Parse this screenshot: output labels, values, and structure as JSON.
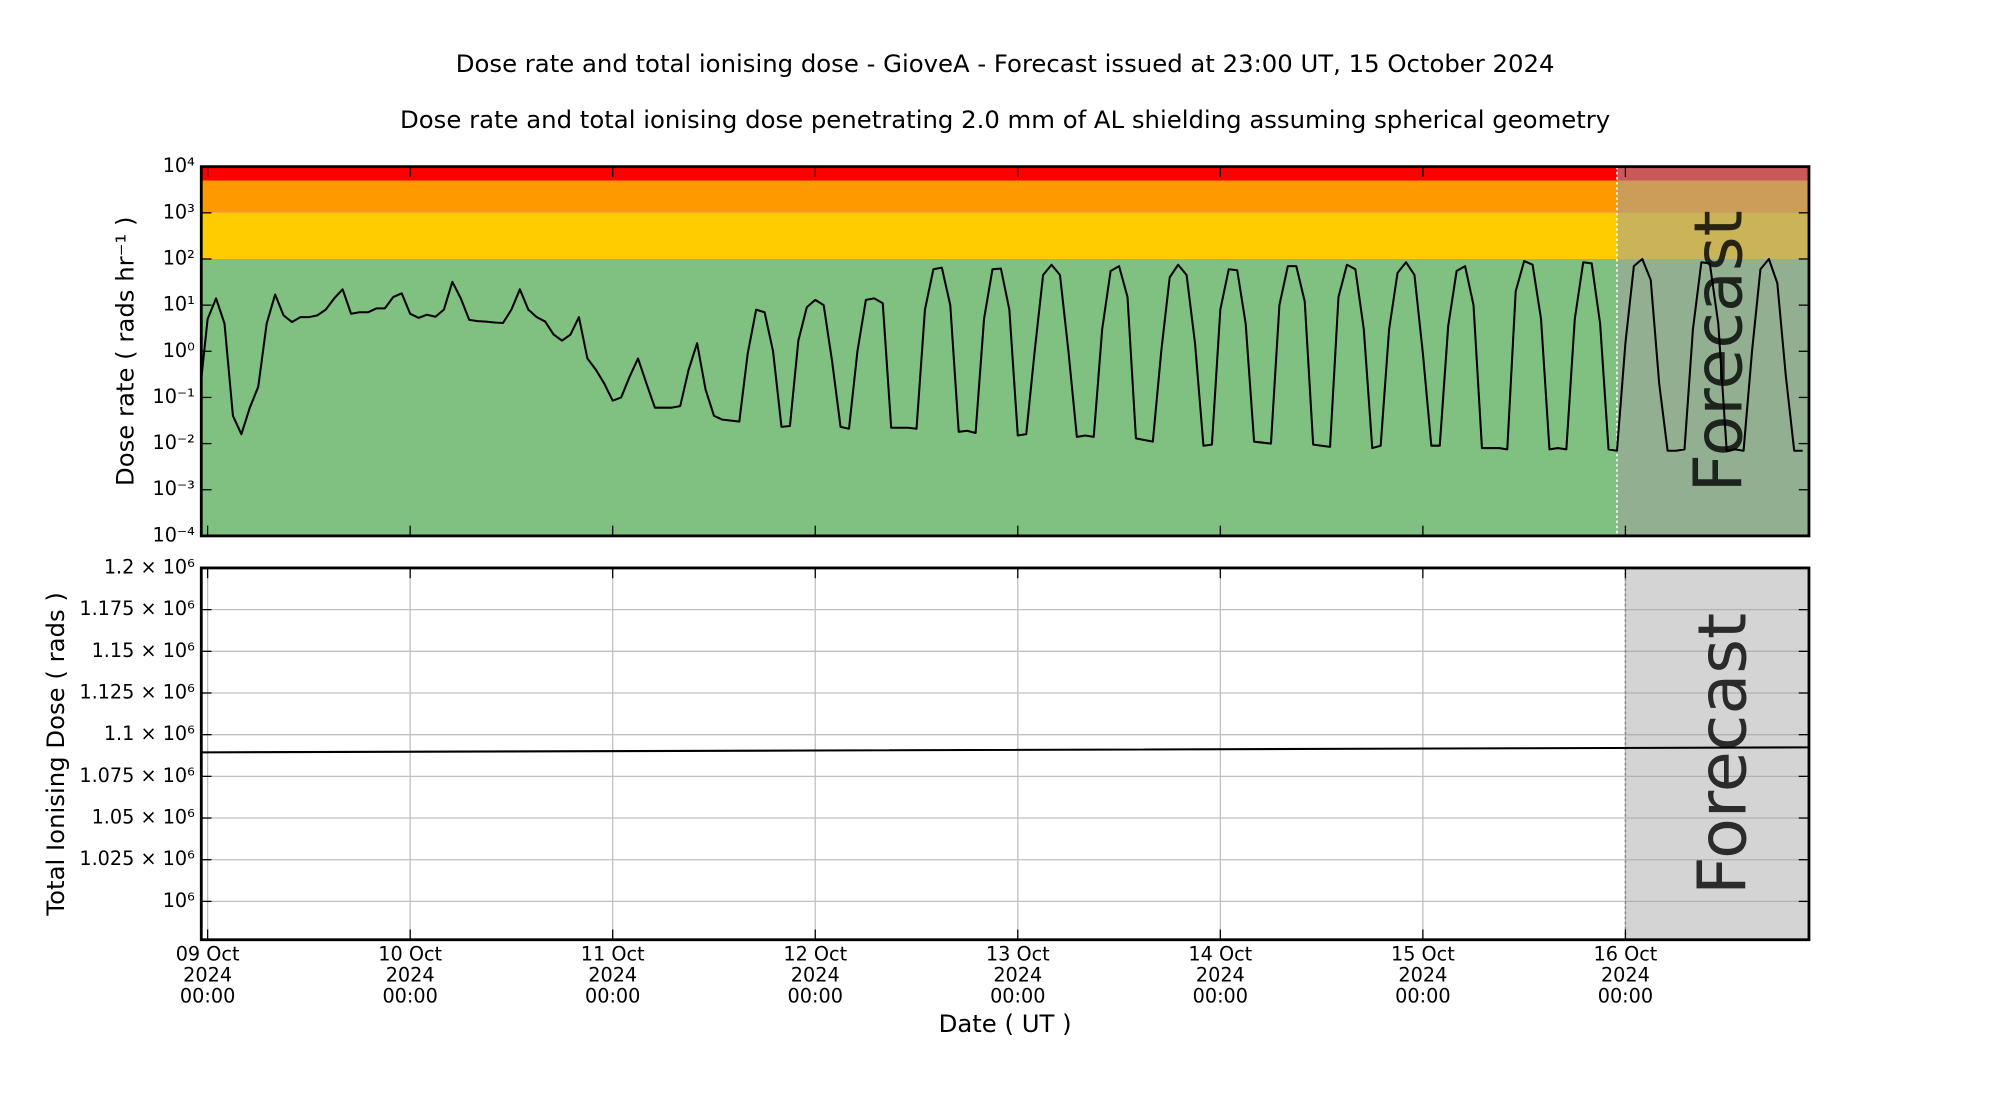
{
  "chart_data": [
    {
      "type": "line",
      "title": "Dose rate and total ionising dose - GioveA - Forecast issued at 23:00 UT, 15 October 2024",
      "subtitle": "Dose rate and total ionising dose penetrating 2.0 mm of AL shielding assuming spherical geometry",
      "ylabel": "Dose rate ( rads hr⁻¹ )",
      "yscale": "log",
      "color": "#000000",
      "xlim": [
        "2024-10-08T23:15",
        "2024-10-16T21:45"
      ],
      "ylim": [
        0.0001,
        10000
      ],
      "yticks": [
        {
          "value": 0.0001,
          "label": "10⁻⁴"
        },
        {
          "value": 0.001,
          "label": "10⁻³"
        },
        {
          "value": 0.01,
          "label": "10⁻²"
        },
        {
          "value": 0.1,
          "label": "10⁻¹"
        },
        {
          "value": 1,
          "label": "10⁰"
        },
        {
          "value": 10,
          "label": "10¹"
        },
        {
          "value": 100,
          "label": "10²"
        },
        {
          "value": 1000,
          "label": "10³"
        },
        {
          "value": 10000,
          "label": "10⁴"
        }
      ],
      "bands": [
        {
          "from": 0.0001,
          "to": 100,
          "color": "#80c080"
        },
        {
          "from": 100,
          "to": 1000,
          "color": "#ffcc00"
        },
        {
          "from": 1000,
          "to": 5000,
          "color": "#ff9900"
        },
        {
          "from": 5000,
          "to": 10000,
          "color": "#ff0000"
        }
      ],
      "forecast_start": "2024-10-15T23:00",
      "annotation": "Forecast",
      "x": [
        "2024-10-08T23:15",
        "2024-10-09T00:00",
        "2024-10-09T01:00",
        "2024-10-09T02:00",
        "2024-10-09T03:00",
        "2024-10-09T04:00",
        "2024-10-09T05:00",
        "2024-10-09T06:00",
        "2024-10-09T07:00",
        "2024-10-09T08:00",
        "2024-10-09T09:00",
        "2024-10-09T10:00",
        "2024-10-09T11:00",
        "2024-10-09T12:00",
        "2024-10-09T13:00",
        "2024-10-09T14:00",
        "2024-10-09T15:00",
        "2024-10-09T16:00",
        "2024-10-09T17:00",
        "2024-10-09T18:00",
        "2024-10-09T19:00",
        "2024-10-09T20:00",
        "2024-10-09T21:00",
        "2024-10-09T22:00",
        "2024-10-09T23:00",
        "2024-10-10T00:00",
        "2024-10-10T01:00",
        "2024-10-10T02:00",
        "2024-10-10T03:00",
        "2024-10-10T04:00",
        "2024-10-10T05:00",
        "2024-10-10T06:00",
        "2024-10-10T07:00",
        "2024-10-10T08:00",
        "2024-10-10T09:00",
        "2024-10-10T10:00",
        "2024-10-10T11:00",
        "2024-10-10T12:00",
        "2024-10-10T13:00",
        "2024-10-10T14:00",
        "2024-10-10T15:00",
        "2024-10-10T16:00",
        "2024-10-10T17:00",
        "2024-10-10T18:00",
        "2024-10-10T19:00",
        "2024-10-10T20:00",
        "2024-10-10T21:00",
        "2024-10-10T22:00",
        "2024-10-10T23:00",
        "2024-10-11T00:00",
        "2024-10-11T01:00",
        "2024-10-11T02:00",
        "2024-10-11T03:00",
        "2024-10-11T04:00",
        "2024-10-11T05:00",
        "2024-10-11T07:00",
        "2024-10-11T08:00",
        "2024-10-11T09:00",
        "2024-10-11T10:00",
        "2024-10-11T11:00",
        "2024-10-11T12:00",
        "2024-10-11T13:00",
        "2024-10-11T15:00",
        "2024-10-11T16:00",
        "2024-10-11T17:00",
        "2024-10-11T18:00",
        "2024-10-11T19:00",
        "2024-10-11T20:00",
        "2024-10-11T21:00",
        "2024-10-11T22:00",
        "2024-10-11T23:00",
        "2024-10-12T00:00",
        "2024-10-12T01:00",
        "2024-10-12T02:00",
        "2024-10-12T03:00",
        "2024-10-12T04:00",
        "2024-10-12T05:00",
        "2024-10-12T06:00",
        "2024-10-12T07:00",
        "2024-10-12T08:00",
        "2024-10-12T09:00",
        "2024-10-12T11:00",
        "2024-10-12T12:00",
        "2024-10-12T13:00",
        "2024-10-12T14:00",
        "2024-10-12T15:00",
        "2024-10-12T16:00",
        "2024-10-12T17:00",
        "2024-10-12T18:00",
        "2024-10-12T19:00",
        "2024-10-12T20:00",
        "2024-10-12T21:00",
        "2024-10-12T22:00",
        "2024-10-12T23:00",
        "2024-10-13T00:00",
        "2024-10-13T01:00",
        "2024-10-13T02:00",
        "2024-10-13T03:00",
        "2024-10-13T04:00",
        "2024-10-13T05:00",
        "2024-10-13T06:00",
        "2024-10-13T07:00",
        "2024-10-13T08:00",
        "2024-10-13T09:00",
        "2024-10-13T10:00",
        "2024-10-13T11:00",
        "2024-10-13T12:00",
        "2024-10-13T13:00",
        "2024-10-13T14:00",
        "2024-10-13T16:00",
        "2024-10-13T17:00",
        "2024-10-13T18:00",
        "2024-10-13T19:00",
        "2024-10-13T20:00",
        "2024-10-13T21:00",
        "2024-10-13T22:00",
        "2024-10-13T23:00",
        "2024-10-14T00:00",
        "2024-10-14T01:00",
        "2024-10-14T02:00",
        "2024-10-14T03:00",
        "2024-10-14T04:00",
        "2024-10-14T06:00",
        "2024-10-14T07:00",
        "2024-10-14T08:00",
        "2024-10-14T09:00",
        "2024-10-14T10:00",
        "2024-10-14T11:00",
        "2024-10-14T13:00",
        "2024-10-14T14:00",
        "2024-10-14T15:00",
        "2024-10-14T16:00",
        "2024-10-14T17:00",
        "2024-10-14T18:00",
        "2024-10-14T19:00",
        "2024-10-14T20:00",
        "2024-10-14T21:00",
        "2024-10-14T22:00",
        "2024-10-14T23:00",
        "2024-10-15T00:00",
        "2024-10-15T01:00",
        "2024-10-15T02:00",
        "2024-10-15T03:00",
        "2024-10-15T04:00",
        "2024-10-15T05:00",
        "2024-10-15T06:00",
        "2024-10-15T07:00",
        "2024-10-15T09:00",
        "2024-10-15T10:00",
        "2024-10-15T11:00",
        "2024-10-15T12:00",
        "2024-10-15T13:00",
        "2024-10-15T14:00",
        "2024-10-15T15:00",
        "2024-10-15T16:00",
        "2024-10-15T17:00",
        "2024-10-15T18:00",
        "2024-10-15T19:00",
        "2024-10-15T20:00",
        "2024-10-15T21:00",
        "2024-10-15T22:00",
        "2024-10-15T23:00",
        "2024-10-16T00:00",
        "2024-10-16T01:00",
        "2024-10-16T02:00",
        "2024-10-16T03:00",
        "2024-10-16T04:00",
        "2024-10-16T05:00",
        "2024-10-16T06:00",
        "2024-10-16T07:00",
        "2024-10-16T08:00",
        "2024-10-16T09:00",
        "2024-10-16T10:00",
        "2024-10-16T11:00",
        "2024-10-16T12:00",
        "2024-10-16T13:00",
        "2024-10-16T14:00",
        "2024-10-16T15:00",
        "2024-10-16T16:00",
        "2024-10-16T17:00",
        "2024-10-16T18:00",
        "2024-10-16T19:00",
        "2024-10-16T20:00",
        "2024-10-16T21:00"
      ],
      "values": [
        0.25,
        5,
        14,
        4,
        0.04,
        0.016,
        0.06,
        0.17,
        4,
        17,
        6,
        4.3,
        5.5,
        5.5,
        6,
        8,
        14,
        22,
        6.5,
        7,
        7,
        8.5,
        8.5,
        15,
        18,
        6.5,
        5.3,
        6.2,
        5.6,
        8,
        32,
        14,
        4.8,
        4.5,
        4.4,
        4.2,
        4.1,
        8,
        22,
        8,
        5.5,
        4.4,
        2.3,
        1.7,
        2.3,
        5.5,
        0.7,
        0.4,
        0.2,
        0.085,
        0.1,
        0.28,
        0.7,
        0.2,
        0.06,
        0.06,
        0.065,
        0.4,
        1.5,
        0.15,
        0.04,
        0.033,
        0.03,
        0.9,
        8,
        7,
        1,
        0.023,
        0.024,
        1.7,
        9,
        13,
        10,
        0.6,
        0.023,
        0.021,
        1,
        13,
        14,
        11,
        0.022,
        0.022,
        0.021,
        8,
        60,
        65,
        10,
        0.018,
        0.019,
        0.017,
        5,
        60,
        62,
        8,
        0.015,
        0.016,
        1,
        45,
        75,
        45,
        1,
        0.014,
        0.015,
        0.014,
        3,
        55,
        70,
        15,
        0.013,
        0.011,
        1,
        40,
        75,
        45,
        1.5,
        0.009,
        0.0095,
        8,
        60,
        57,
        4,
        0.011,
        0.01,
        10,
        70,
        70,
        12,
        0.0095,
        0.0085,
        15,
        75,
        60,
        3,
        0.008,
        0.009,
        3,
        50,
        85,
        45,
        0.9,
        0.009,
        0.009,
        3.5,
        55,
        70,
        10,
        0.008,
        0.008,
        0.0075,
        20,
        90,
        75,
        5,
        0.0075,
        0.008,
        0.0075,
        5,
        85,
        80,
        4,
        0.0075,
        0.007,
        1.5,
        70,
        100,
        35,
        0.2,
        0.007,
        0.007,
        0.0075,
        3,
        85,
        80,
        4,
        0.007,
        0.0075,
        0.007,
        1,
        60,
        100,
        30,
        0.3,
        0.007,
        0.007
      ]
    },
    {
      "type": "line",
      "ylabel": "Total Ionising Dose ( rads )",
      "xlabel": "Date ( UT )",
      "color": "#000000",
      "grid": true,
      "xlim": [
        "2024-10-08T23:15",
        "2024-10-16T21:45"
      ],
      "xticks": [
        {
          "value": "2024-10-09T00:00",
          "label": "09 Oct\n2024\n00:00"
        },
        {
          "value": "2024-10-10T00:00",
          "label": "10 Oct\n2024\n00:00"
        },
        {
          "value": "2024-10-11T00:00",
          "label": "11 Oct\n2024\n00:00"
        },
        {
          "value": "2024-10-12T00:00",
          "label": "12 Oct\n2024\n00:00"
        },
        {
          "value": "2024-10-13T00:00",
          "label": "13 Oct\n2024\n00:00"
        },
        {
          "value": "2024-10-14T00:00",
          "label": "14 Oct\n2024\n00:00"
        },
        {
          "value": "2024-10-15T00:00",
          "label": "15 Oct\n2024\n00:00"
        },
        {
          "value": "2024-10-16T00:00",
          "label": "16 Oct\n2024\n00:00"
        }
      ],
      "ylim": [
        977000,
        1200000
      ],
      "yticks": [
        {
          "value": 1000000,
          "label": "10⁶"
        },
        {
          "value": 1025000,
          "label": "1.025 × 10⁶"
        },
        {
          "value": 1050000,
          "label": "1.05 × 10⁶"
        },
        {
          "value": 1075000,
          "label": "1.075 × 10⁶"
        },
        {
          "value": 1100000,
          "label": "1.1 × 10⁶"
        },
        {
          "value": 1125000,
          "label": "1.125 × 10⁶"
        },
        {
          "value": 1150000,
          "label": "1.15 × 10⁶"
        },
        {
          "value": 1175000,
          "label": "1.175 × 10⁶"
        },
        {
          "value": 1200000,
          "label": "1.2 × 10⁶"
        }
      ],
      "forecast_start": "2024-10-16T00:00",
      "annotation": "Forecast",
      "x": [
        "2024-10-08T23:15",
        "2024-10-12T00:00",
        "2024-10-16T21:45"
      ],
      "values": [
        1089400,
        1090500,
        1092400
      ]
    }
  ]
}
